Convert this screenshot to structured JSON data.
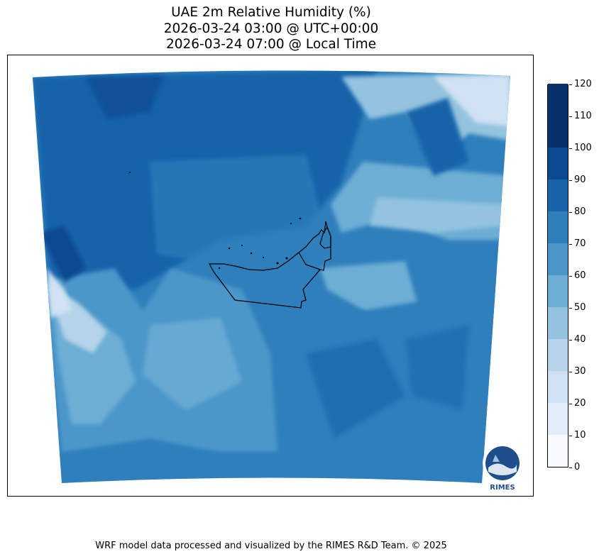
{
  "title": {
    "line1": "UAE 2m Relative Humidity (%)",
    "line2": "2026-03-24 03:00 @ UTC+00:00",
    "line3": "2026-03-24 07:00 @ Local Time"
  },
  "colorbar": {
    "ticks": [
      "0",
      "10",
      "20",
      "30",
      "40",
      "50",
      "60",
      "70",
      "80",
      "90",
      "100",
      "110",
      "120"
    ],
    "colors": [
      "#f7fbff",
      "#e3eef9",
      "#cfe1f2",
      "#b5d4e9",
      "#93c3df",
      "#6daed5",
      "#4b97c9",
      "#2f7fbc",
      "#1864aa",
      "#0a4a90",
      "#08306b",
      "#08306b"
    ]
  },
  "logo": {
    "text": "RIMES"
  },
  "footer": "WRF model data processed and visualized by the RIMES R&D Team. © 2025"
}
